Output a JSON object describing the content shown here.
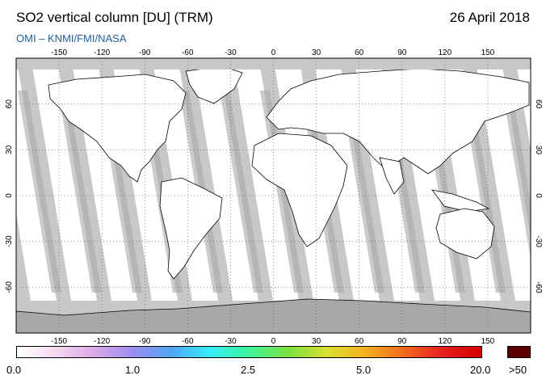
{
  "header": {
    "title": "SO2 vertical column [DU] (TRM)",
    "date": "26 April 2018",
    "credit": "OMI  –  KNMI/FMI/NASA"
  },
  "map": {
    "projection": "plate-carree",
    "lon_ticks": [
      "-150",
      "-120",
      "-90",
      "-60",
      "-30",
      "0",
      "30",
      "60",
      "90",
      "120",
      "150"
    ],
    "lat_ticks": [
      "60",
      "30",
      "0",
      "-30",
      "-60"
    ],
    "colors": {
      "no_data": "#c8c8c8",
      "land_shade": "#a8a8a8",
      "swath_background": "#ffffff",
      "coastline": "#000000",
      "grid": "#555555"
    },
    "features": [
      "coastlines",
      "lat/lon dotted grid",
      "satellite swath stripes",
      "Antarctica no-data region"
    ]
  },
  "colorbar": {
    "labels": [
      "0.0",
      "1.0",
      "2.5",
      "5.0",
      "20.0"
    ],
    "overflow_label": ">50",
    "colors": [
      "#ffffff",
      "#f5d8f0",
      "#d9a8ea",
      "#9a8ef0",
      "#4fa6f5",
      "#35eef5",
      "#3ef59a",
      "#7ce040",
      "#d8e030",
      "#f6b020",
      "#f36a1e",
      "#e81e1e",
      "#d40000"
    ],
    "overflow_color": "#5c0000"
  }
}
